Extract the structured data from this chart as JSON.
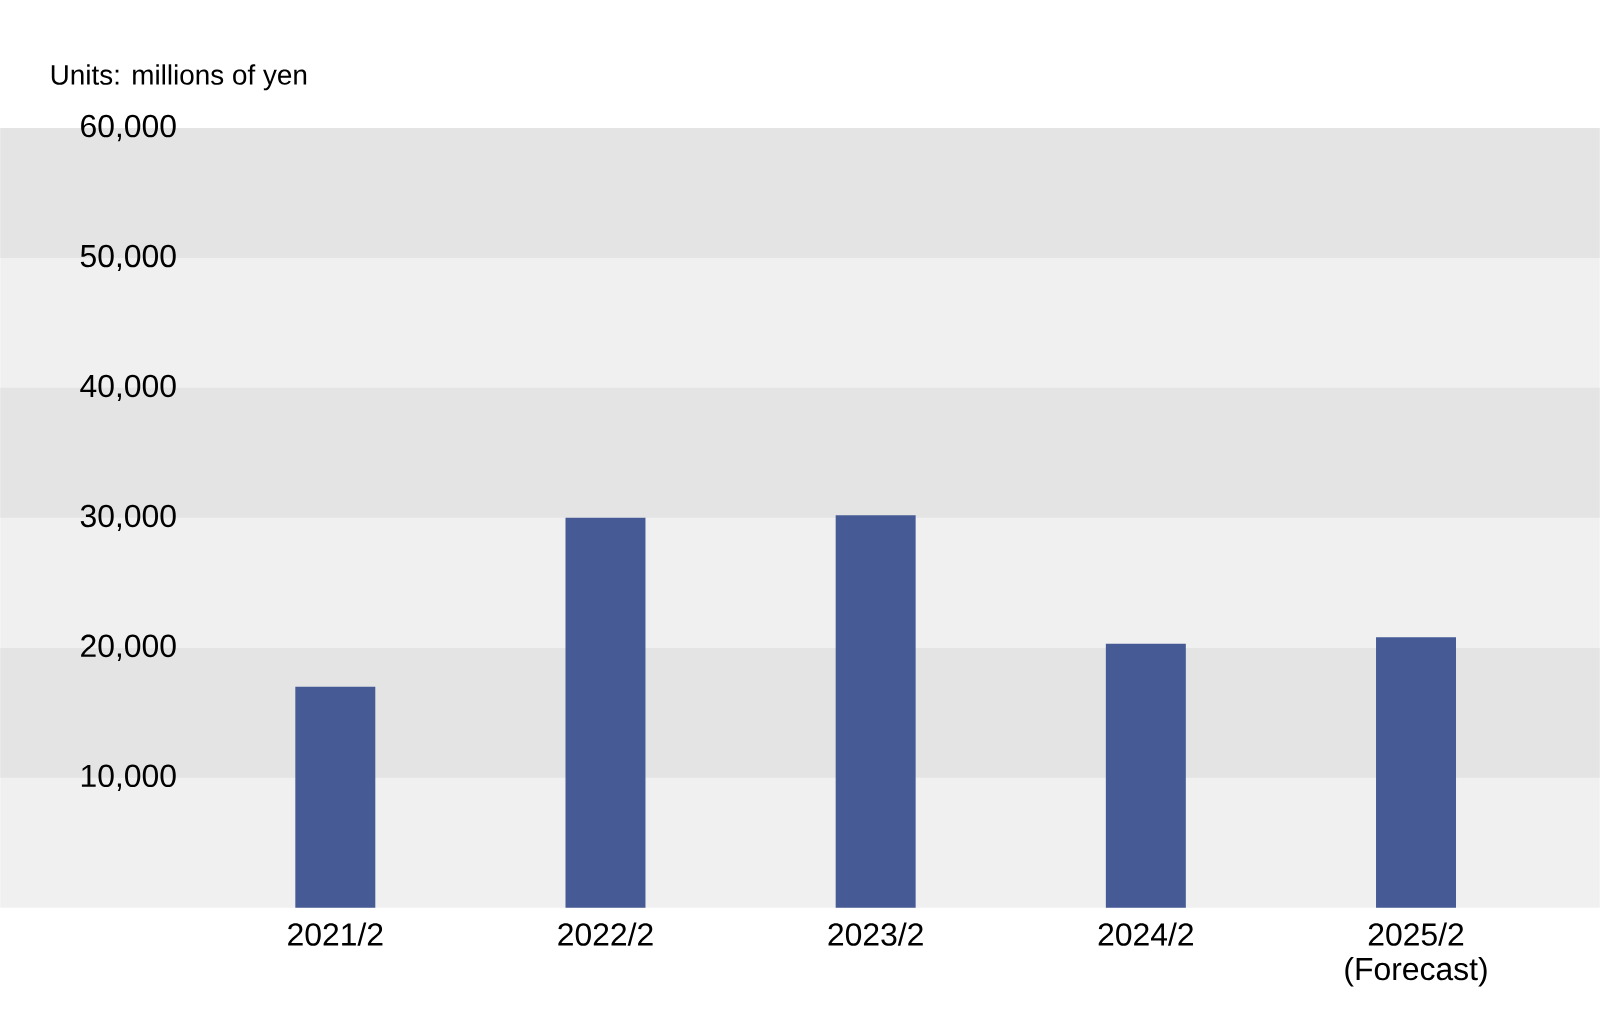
{
  "chart_data": {
    "type": "bar",
    "ylabel": "Units: millions of yen",
    "categories": [
      "2021/2",
      "2022/2",
      "2023/2",
      "2024/2",
      "2025/2 (Forecast)"
    ],
    "values": [
      17000,
      30000,
      30200,
      20300,
      20800
    ],
    "color": "#465a96",
    "ylim": [
      0,
      60000
    ],
    "yticks": [
      {
        "value": 0,
        "label": null
      },
      {
        "value": 10000,
        "label": "10,000"
      },
      {
        "value": 20000,
        "label": "20,000"
      },
      {
        "value": 30000,
        "label": "30,000"
      },
      {
        "value": 40000,
        "label": "40,000"
      },
      {
        "value": 50000,
        "label": "50,000"
      },
      {
        "value": 60000,
        "label": "60,000"
      }
    ],
    "bands": [
      {
        "axis": "y",
        "from": 10000,
        "to": 20000,
        "color": "#e4e4e4"
      },
      {
        "axis": "y",
        "from": 30000,
        "to": 40000,
        "color": "#e4e4e4"
      },
      {
        "axis": "y",
        "from": 50000,
        "to": 60000,
        "color": "#e4e4e4"
      }
    ]
  }
}
